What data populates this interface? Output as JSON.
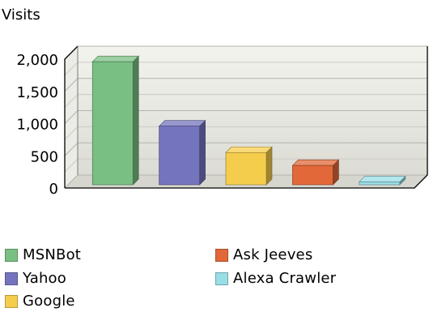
{
  "chart_data": {
    "type": "bar",
    "title": "",
    "ylabel": "Visits",
    "xlabel": "",
    "ylim": [
      0,
      2000
    ],
    "yticks": [
      0,
      500,
      1000,
      1500,
      2000
    ],
    "ytick_labels": [
      "0",
      "500",
      "1,000",
      "1,500",
      "2,000"
    ],
    "grid": true,
    "three_d": true,
    "categories": [
      "MSNBot",
      "Yahoo",
      "Google",
      "Ask Jeeves",
      "Alexa Crawler"
    ],
    "values": [
      1910,
      910,
      500,
      300,
      45
    ],
    "colors": [
      "#79bf83",
      "#7474be",
      "#f5cd4c",
      "#e2683a",
      "#99dde6"
    ],
    "legend_position": "bottom"
  }
}
